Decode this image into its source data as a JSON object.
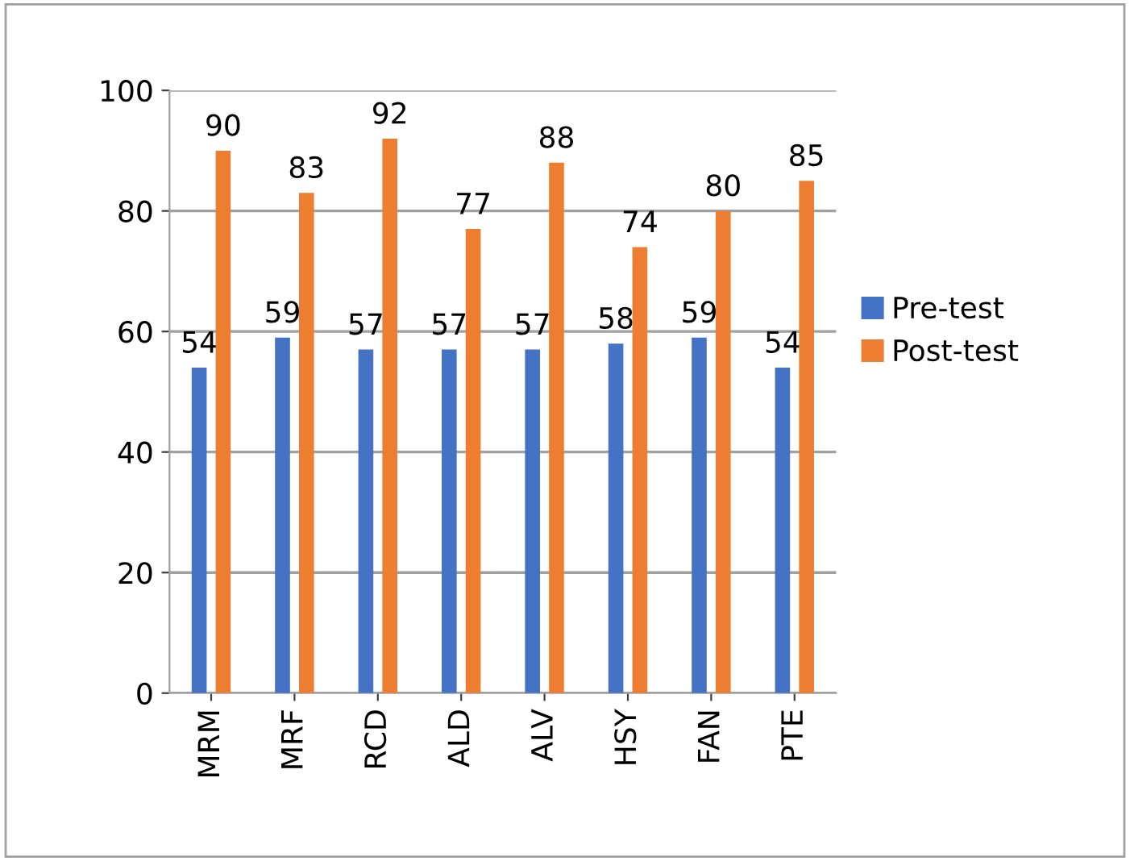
{
  "chart_data": {
    "type": "bar",
    "categories": [
      "MRM",
      "MRF",
      "RCD",
      "ALD",
      "ALV",
      "HSY",
      "FAN",
      "PTE"
    ],
    "series": [
      {
        "name": "Pre-test",
        "color": "#4472c4",
        "values": [
          54,
          59,
          57,
          57,
          57,
          58,
          59,
          54
        ]
      },
      {
        "name": "Post-test",
        "color": "#ed7d31",
        "values": [
          90,
          83,
          92,
          77,
          88,
          74,
          80,
          85
        ]
      }
    ],
    "ylim": [
      0,
      100
    ],
    "yticks": [
      0,
      20,
      40,
      60,
      80,
      100
    ],
    "grid": "y",
    "legend": "right",
    "data_labels": true
  }
}
